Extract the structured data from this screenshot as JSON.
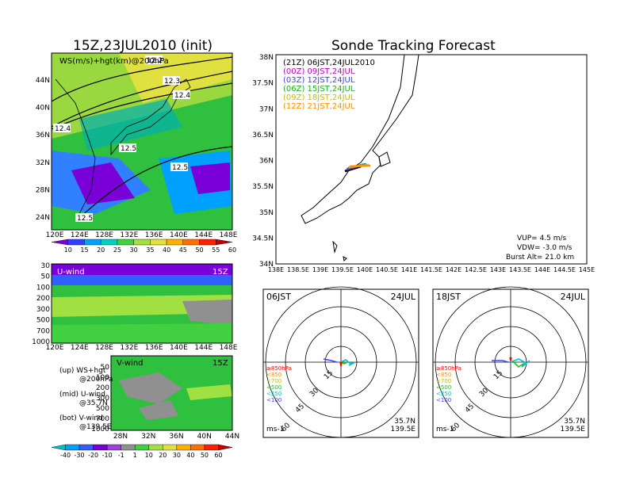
{
  "left_title": "15Z,23JUL2010 (init)",
  "right_title": "Sonde Tracking Forecast",
  "map_panel": {
    "label": "WS(m/s)+hgt(km)@200hPa",
    "lat_ticks": [
      "44N",
      "40N",
      "36N",
      "32N",
      "28N",
      "24N"
    ],
    "lon_ticks": [
      "120E",
      "124E",
      "128E",
      "132E",
      "136E",
      "140E",
      "144E",
      "148E"
    ],
    "contour_labels": [
      "12.2",
      "12.3",
      "12.4",
      "12.4",
      "12.5",
      "12.5",
      "12.5"
    ]
  },
  "ws_colorbar": {
    "labels": [
      "10",
      "15",
      "20",
      "25",
      "30",
      "35",
      "40",
      "45",
      "50",
      "55",
      "60"
    ],
    "colors": [
      "#7a00d8",
      "#3040ff",
      "#00a0ff",
      "#00d0c0",
      "#40d040",
      "#a0e040",
      "#e0e040",
      "#ffb000",
      "#ff7000",
      "#ff2000",
      "#c00000"
    ]
  },
  "u_panel": {
    "label": "U-wind",
    "time": "15Z",
    "y_ticks": [
      "30",
      "50",
      "100",
      "200",
      "300",
      "500",
      "700",
      "1000"
    ],
    "x_ticks": [
      "120E",
      "124E",
      "128E",
      "132E",
      "136E",
      "140E",
      "144E",
      "148E"
    ]
  },
  "v_panel": {
    "label": "V-wind",
    "time": "15Z",
    "y_ticks": [
      "50",
      "100",
      "200",
      "300",
      "500",
      "700",
      "1000"
    ],
    "x_ticks": [
      "28N",
      "32N",
      "36N",
      "40N",
      "44N"
    ]
  },
  "notes": {
    "up1": "(up) WS+hgt",
    "up2": "@200hPa",
    "mid1": "(mid) U-wind",
    "mid2": "@35.7N",
    "bot1": "(bot) V-wind",
    "bot2": "@139.5E"
  },
  "uv_colorbar": {
    "labels": [
      "-40",
      "-30",
      "-20",
      "-10",
      "-1",
      "1",
      "10",
      "20",
      "30",
      "40",
      "50",
      "60"
    ],
    "colors": [
      "#00c0c0",
      "#00a0ff",
      "#3060ff",
      "#7a00d8",
      "#a040e0",
      "#909090",
      "#40d040",
      "#a0e040",
      "#e0e040",
      "#ffb000",
      "#ff7000",
      "#ff2000",
      "#c00000"
    ]
  },
  "track_map": {
    "legend": [
      {
        "text": "(21Z) 06JST,24JUL2010",
        "color": "#000000"
      },
      {
        "text": "(00Z) 09JST,24JUL",
        "color": "#c000c0"
      },
      {
        "text": "(03Z) 12JST,24JUL",
        "color": "#4040ff"
      },
      {
        "text": "(06Z) 15JST,24JUL",
        "color": "#20b020"
      },
      {
        "text": "(09Z) 18JST,24JUL",
        "color": "#c0c000"
      },
      {
        "text": "(12Z) 21JST,24JUL",
        "color": "#ff9000"
      }
    ],
    "lat_ticks": [
      "38N",
      "37.5N",
      "37N",
      "36.5N",
      "36N",
      "35.5N",
      "35N",
      "34.5N",
      "34N"
    ],
    "lon_ticks": [
      "138E",
      "138.5E",
      "139E",
      "139.5E",
      "140E",
      "140.5E",
      "141E",
      "141.5E",
      "142E",
      "142.5E",
      "143E",
      "143.5E",
      "144E",
      "144.5E",
      "145E"
    ],
    "vup": "VUP= 4.5 m/s",
    "vdw": "VDW= -3.0 m/s",
    "burst": "Burst Alt= 21.0 km"
  },
  "hodo_left": {
    "time": "06JST",
    "date": "24JUL",
    "ring_labels": [
      "15",
      "30",
      "45",
      "60"
    ],
    "unit": "ms-1",
    "lat": "35.7N",
    "lon": "139.5E",
    "legend": [
      {
        "text": "≥850hPa",
        "color": "#ff0000"
      },
      {
        "text": "<850",
        "color": "#ff9000"
      },
      {
        "text": "<700",
        "color": "#c0c000"
      },
      {
        "text": "<500",
        "color": "#20c020"
      },
      {
        "text": "<250",
        "color": "#00c0c0"
      },
      {
        "text": "<100",
        "color": "#4040ff"
      }
    ]
  },
  "hodo_right": {
    "time": "18JST",
    "date": "24JUL",
    "ring_labels": [
      "15",
      "30",
      "45",
      "60"
    ],
    "unit": "ms-1",
    "lat": "35.7N",
    "lon": "139.5E",
    "legend": [
      {
        "text": "≥850hPa",
        "color": "#ff0000"
      },
      {
        "text": "<850",
        "color": "#ff9000"
      },
      {
        "text": "<700",
        "color": "#c0c000"
      },
      {
        "text": "<500",
        "color": "#20c020"
      },
      {
        "text": "<250",
        "color": "#00c0c0"
      },
      {
        "text": "<100",
        "color": "#4040ff"
      }
    ]
  }
}
